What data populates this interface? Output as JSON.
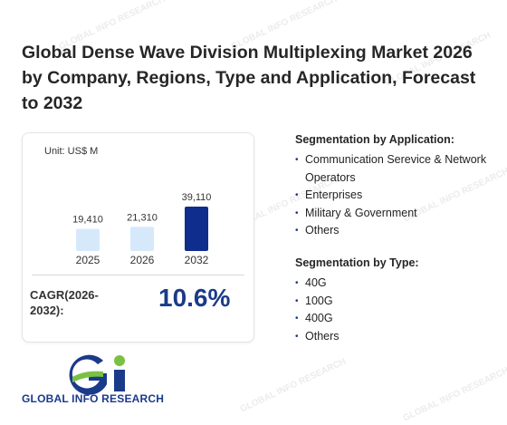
{
  "title": "Global Dense Wave Division Multiplexing Market 2026 by Company, Regions, Type and Application, Forecast to 2032",
  "chart_data": {
    "type": "bar",
    "unit_label": "Unit: US$ M",
    "categories": [
      "2025",
      "2026",
      "2032"
    ],
    "values": [
      19410,
      21310,
      39110
    ],
    "value_labels": [
      "19,410",
      "21,310",
      "39,110"
    ],
    "colors": [
      "#d6e9fb",
      "#d6e9fb",
      "#0f2d8c"
    ]
  },
  "cagr": {
    "label": "CAGR(2026-2032):",
    "value": "10.6%"
  },
  "segmentation_application": {
    "title": "Segmentation by Application:",
    "items": [
      "Communication Serevice & Network Operators",
      "Enterprises",
      "Military & Government",
      "Others"
    ]
  },
  "segmentation_type": {
    "title": "Segmentation by Type:",
    "items": [
      "40G",
      "100G",
      "400G",
      "Others"
    ]
  },
  "logo": {
    "text": "GLOBAL INFO RESEARCH"
  },
  "colors": {
    "accent": "#1a3a8a",
    "bar_light": "#d6e9fb",
    "bar_dark": "#0f2d8c",
    "logo_green": "#7ac143"
  }
}
